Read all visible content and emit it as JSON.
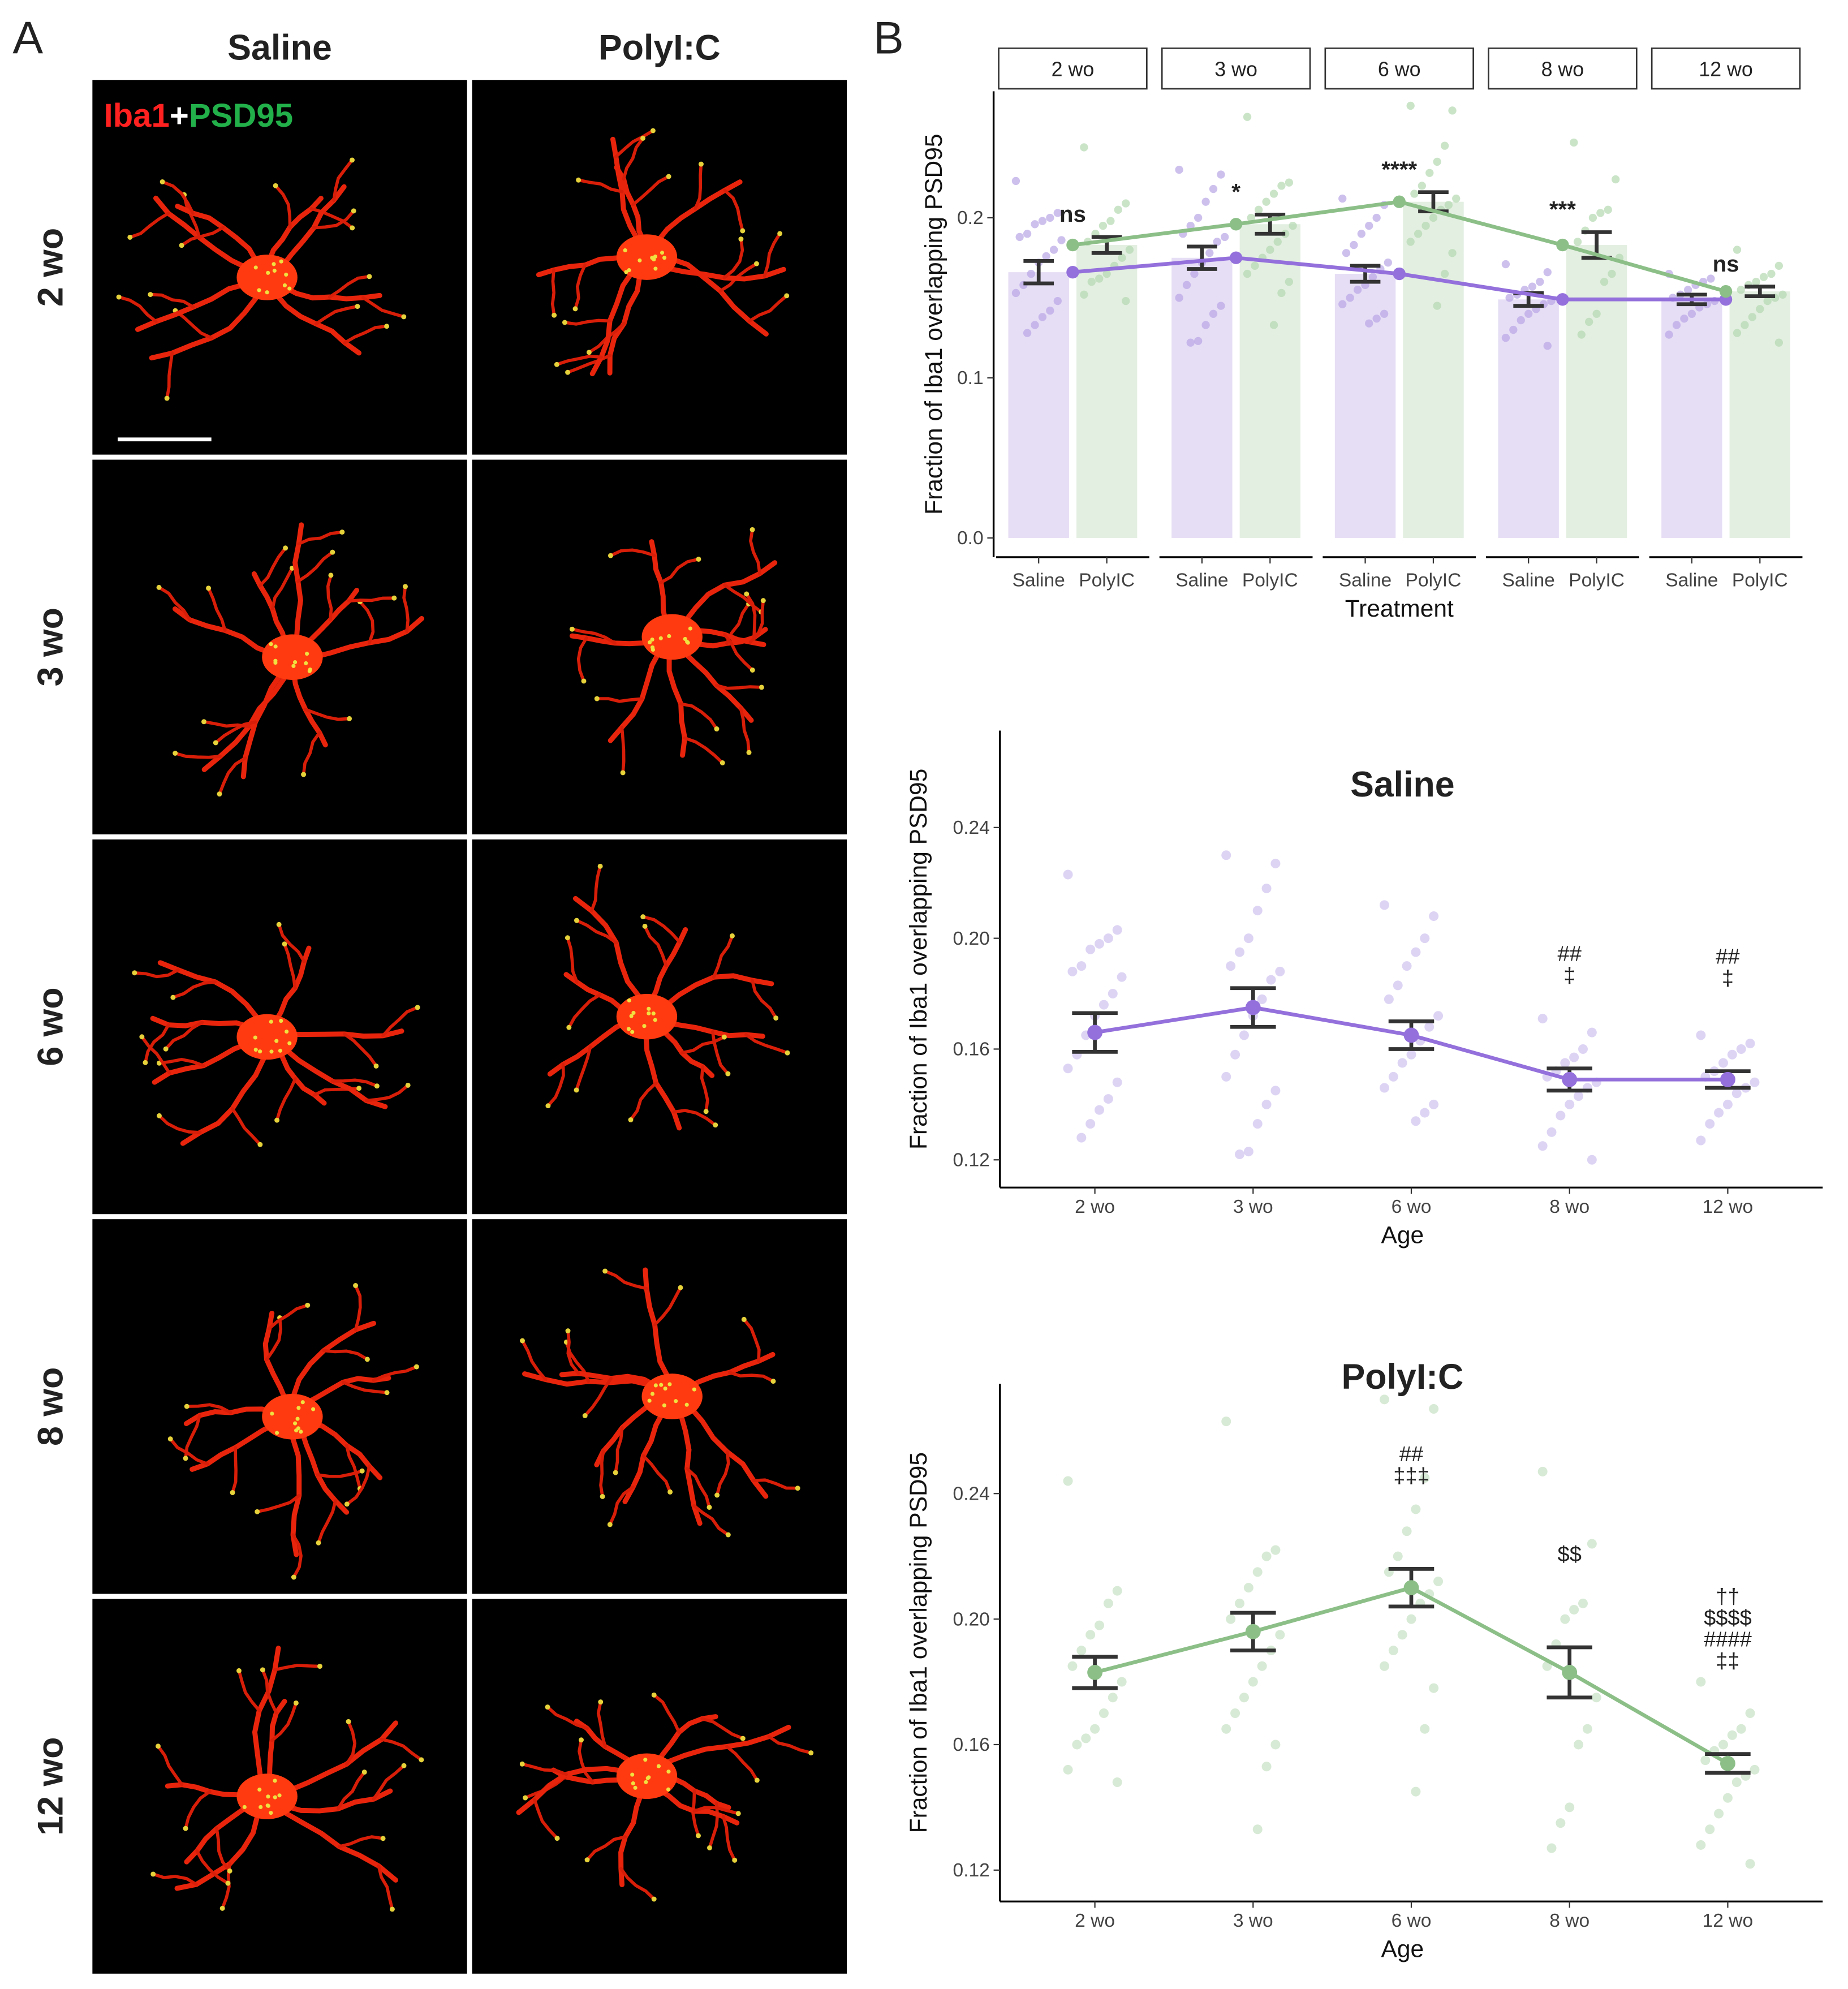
{
  "panel_labels": [
    "A",
    "B"
  ],
  "images": {
    "columns": [
      "Saline",
      "PolyI:C"
    ],
    "rows": [
      "2 wo",
      "3 wo",
      "6 wo",
      "8 wo",
      "12 wo"
    ],
    "stain": [
      "Iba1",
      "+",
      "PSD95"
    ],
    "stain_colors": [
      "#ff2020",
      "#ffffff",
      "#22b04a"
    ]
  },
  "chart_data": [
    {
      "type": "bar",
      "facets": [
        "2 wo",
        "3 wo",
        "6 wo",
        "8 wo",
        "12 wo"
      ],
      "xlabel": "Treatment",
      "ylabel": "Fraction of Iba1 overlapping PSD95",
      "ylim": [
        -0.012,
        0.279
      ],
      "yticks": [
        {
          "value": 0,
          "label": "0.0"
        },
        0.1,
        0.2
      ],
      "annotations": [
        "ns",
        "*",
        "****",
        "***",
        "ns"
      ],
      "series": [
        {
          "name": "Saline",
          "color": "#9370db",
          "bar_color": "#e6def5",
          "point_color": "#b8a5e6",
          "values": [
            0.166,
            0.175,
            0.165,
            0.149,
            0.149
          ],
          "errors": [
            0.007,
            0.007,
            0.005,
            0.004,
            0.003
          ],
          "points": [
            [
              0.223,
              0.203,
              0.2,
              0.198,
              0.196,
              0.19,
              0.188,
              0.186,
              0.18,
              0.176,
              0.172,
              0.165,
              0.158,
              0.153,
              0.148,
              0.142,
              0.138,
              0.133,
              0.128
            ],
            [
              0.23,
              0.227,
              0.218,
              0.21,
              0.2,
              0.195,
              0.19,
              0.188,
              0.185,
              0.178,
              0.172,
              0.165,
              0.158,
              0.15,
              0.145,
              0.14,
              0.133,
              0.123,
              0.122
            ],
            [
              0.212,
              0.208,
              0.2,
              0.195,
              0.19,
              0.183,
              0.178,
              0.172,
              0.168,
              0.163,
              0.158,
              0.155,
              0.15,
              0.146,
              0.14,
              0.137,
              0.134
            ],
            [
              0.171,
              0.166,
              0.16,
              0.157,
              0.155,
              0.152,
              0.15,
              0.148,
              0.146,
              0.143,
              0.14,
              0.136,
              0.13,
              0.125,
              0.12
            ],
            [
              0.165,
              0.162,
              0.16,
              0.158,
              0.155,
              0.152,
              0.15,
              0.148,
              0.146,
              0.144,
              0.14,
              0.137,
              0.133,
              0.127
            ]
          ]
        },
        {
          "name": "PolyIC",
          "color": "#8cbf88",
          "bar_color": "#e3efe1",
          "point_color": "#b3d9b0",
          "values": [
            0.183,
            0.196,
            0.21,
            0.183,
            0.154
          ],
          "errors": [
            0.005,
            0.006,
            0.006,
            0.008,
            0.003
          ],
          "points": [
            [
              0.244,
              0.209,
              0.205,
              0.198,
              0.195,
              0.19,
              0.185,
              0.18,
              0.175,
              0.17,
              0.165,
              0.162,
              0.16,
              0.152,
              0.148
            ],
            [
              0.263,
              0.222,
              0.22,
              0.215,
              0.21,
              0.205,
              0.2,
              0.195,
              0.19,
              0.185,
              0.18,
              0.175,
              0.17,
              0.165,
              0.16,
              0.153,
              0.133
            ],
            [
              0.27,
              0.267,
              0.245,
              0.235,
              0.228,
              0.22,
              0.215,
              0.212,
              0.208,
              0.205,
              0.2,
              0.195,
              0.19,
              0.185,
              0.178,
              0.165,
              0.145
            ],
            [
              0.247,
              0.224,
              0.205,
              0.203,
              0.2,
              0.192,
              0.185,
              0.175,
              0.165,
              0.16,
              0.14,
              0.135,
              0.127
            ],
            [
              0.18,
              0.17,
              0.165,
              0.163,
              0.16,
              0.158,
              0.155,
              0.152,
              0.15,
              0.148,
              0.143,
              0.138,
              0.133,
              0.128,
              0.122
            ]
          ]
        }
      ]
    },
    {
      "type": "line",
      "title": "Saline",
      "categories": [
        "2 wo",
        "3 wo",
        "6 wo",
        "8 wo",
        "12 wo"
      ],
      "xlabel": "Age",
      "ylabel": "Fraction of Iba1 overlapping PSD95",
      "ylim": [
        0.11,
        0.275
      ],
      "yticks": [
        0.12,
        0.16,
        {
          "value": 0.2,
          "label": "0.20"
        },
        0.24
      ],
      "annotations": [
        null,
        null,
        null,
        [
          "##",
          "‡"
        ],
        [
          "##",
          "‡"
        ]
      ],
      "series": [
        {
          "color": "#9370db",
          "point_color": "#c7b8ec",
          "values": [
            0.166,
            0.175,
            0.165,
            0.149,
            0.149
          ],
          "errors": [
            0.007,
            0.007,
            0.005,
            0.004,
            0.003
          ],
          "points": [
            [
              0.223,
              0.203,
              0.2,
              0.198,
              0.196,
              0.19,
              0.188,
              0.186,
              0.18,
              0.176,
              0.172,
              0.165,
              0.158,
              0.153,
              0.148,
              0.142,
              0.138,
              0.133,
              0.128
            ],
            [
              0.23,
              0.227,
              0.218,
              0.21,
              0.2,
              0.195,
              0.19,
              0.188,
              0.185,
              0.178,
              0.172,
              0.165,
              0.158,
              0.15,
              0.145,
              0.14,
              0.133,
              0.123,
              0.122
            ],
            [
              0.212,
              0.208,
              0.2,
              0.195,
              0.19,
              0.183,
              0.178,
              0.172,
              0.168,
              0.163,
              0.158,
              0.155,
              0.15,
              0.146,
              0.14,
              0.137,
              0.134
            ],
            [
              0.171,
              0.166,
              0.16,
              0.157,
              0.155,
              0.152,
              0.15,
              0.148,
              0.146,
              0.143,
              0.14,
              0.136,
              0.13,
              0.125,
              0.12
            ],
            [
              0.165,
              0.162,
              0.16,
              0.158,
              0.155,
              0.152,
              0.15,
              0.148,
              0.146,
              0.144,
              0.14,
              0.137,
              0.133,
              0.127
            ]
          ]
        }
      ]
    },
    {
      "type": "line",
      "title": "PolyI:C",
      "categories": [
        "2 wo",
        "3 wo",
        "6 wo",
        "8 wo",
        "12 wo"
      ],
      "xlabel": "Age",
      "ylabel": "Fraction of Iba1 overlapping PSD95",
      "ylim": [
        0.11,
        0.275
      ],
      "yticks": [
        0.12,
        0.16,
        {
          "value": 0.2,
          "label": "0.20"
        },
        0.24
      ],
      "annotations": [
        null,
        null,
        [
          "##",
          "‡‡‡"
        ],
        [
          "$$"
        ],
        [
          "††",
          "$$$$",
          "####",
          "‡‡"
        ]
      ],
      "series": [
        {
          "color": "#8cbf88",
          "point_color": "#bcdcb9",
          "values": [
            0.183,
            0.196,
            0.21,
            0.183,
            0.154
          ],
          "errors": [
            0.005,
            0.006,
            0.006,
            0.008,
            0.003
          ],
          "points": [
            [
              0.244,
              0.209,
              0.205,
              0.198,
              0.195,
              0.19,
              0.185,
              0.18,
              0.175,
              0.17,
              0.165,
              0.162,
              0.16,
              0.152,
              0.148
            ],
            [
              0.263,
              0.222,
              0.22,
              0.215,
              0.21,
              0.205,
              0.2,
              0.195,
              0.19,
              0.185,
              0.18,
              0.175,
              0.17,
              0.165,
              0.16,
              0.153,
              0.133
            ],
            [
              0.27,
              0.267,
              0.245,
              0.235,
              0.228,
              0.22,
              0.215,
              0.212,
              0.208,
              0.205,
              0.2,
              0.195,
              0.19,
              0.185,
              0.178,
              0.165,
              0.145
            ],
            [
              0.247,
              0.224,
              0.205,
              0.203,
              0.2,
              0.192,
              0.185,
              0.175,
              0.165,
              0.16,
              0.14,
              0.135,
              0.127
            ],
            [
              0.18,
              0.17,
              0.165,
              0.163,
              0.16,
              0.158,
              0.155,
              0.152,
              0.15,
              0.148,
              0.143,
              0.138,
              0.133,
              0.128,
              0.122
            ]
          ]
        }
      ]
    }
  ]
}
